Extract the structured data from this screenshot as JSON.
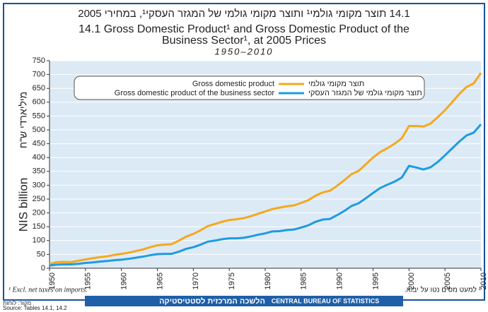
{
  "chart_data": {
    "type": "line",
    "title_he": "14.1 תוצר מקומי גולמי¹ ותוצר מקומי גולמי של המגזר העסקי¹, במחירי 2005",
    "title": [
      "14.1 Gross Domestic Product¹ and Gross Domestic Product of the",
      "Business Sector¹, at 2005 Prices"
    ],
    "subtitle": "1950–2010",
    "y_label": "NIS billion",
    "y_label_he": "מיליארדי ש\"ח",
    "footnote": "¹ Excl. net taxes on imports.",
    "footnote_he": "¹ למעט מסים נטו על יבוא.",
    "footer": "CENTRAL BUREAU OF STATISTICS",
    "footer_he": "הלשכה המרכזית לסטטיסטיקה",
    "source": "Source: Tables 14.1, 14.2",
    "source_he": "מקור: לוחות",
    "x": [
      1950,
      1951,
      1952,
      1953,
      1954,
      1955,
      1956,
      1957,
      1958,
      1959,
      1960,
      1961,
      1962,
      1963,
      1964,
      1965,
      1966,
      1967,
      1968,
      1969,
      1970,
      1971,
      1972,
      1973,
      1974,
      1975,
      1976,
      1977,
      1978,
      1979,
      1980,
      1981,
      1982,
      1983,
      1984,
      1985,
      1986,
      1987,
      1988,
      1989,
      1990,
      1991,
      1992,
      1993,
      1994,
      1995,
      1996,
      1997,
      1998,
      1999,
      2000,
      2001,
      2002,
      2003,
      2004,
      2005,
      2006,
      2007,
      2008,
      2009,
      2010
    ],
    "series": [
      {
        "name": "Gross domestic product",
        "name_he": "תוצר מקומי גולמי",
        "color": "#f5a81c",
        "values": [
          15,
          22,
          23,
          22,
          27,
          32,
          36,
          40,
          43,
          48,
          52,
          56,
          62,
          68,
          76,
          83,
          85,
          87,
          100,
          114,
          124,
          137,
          152,
          160,
          168,
          174,
          177,
          181,
          188,
          197,
          205,
          214,
          219,
          224,
          227,
          236,
          246,
          262,
          274,
          280,
          298,
          318,
          340,
          352,
          376,
          400,
          420,
          434,
          450,
          470,
          514,
          514,
          512,
          523,
          546,
          571,
          600,
          630,
          655,
          668,
          706
        ]
      },
      {
        "name": "Gross domestic product of the business sector",
        "name_he": "תוצר מקומי גולמי של המגזר העסקי",
        "color": "#1e9be0",
        "values": [
          10,
          13,
          14,
          14,
          16,
          19,
          21,
          24,
          26,
          29,
          31,
          34,
          38,
          42,
          47,
          51,
          52,
          52,
          60,
          70,
          76,
          85,
          96,
          100,
          105,
          108,
          108,
          110,
          115,
          121,
          126,
          133,
          134,
          138,
          140,
          147,
          155,
          168,
          176,
          178,
          192,
          207,
          225,
          235,
          253,
          272,
          290,
          302,
          313,
          328,
          370,
          364,
          357,
          365,
          384,
          408,
          433,
          458,
          480,
          490,
          520
        ]
      }
    ],
    "xlim": [
      1950,
      2010
    ],
    "xticks": [
      1950,
      1955,
      1960,
      1965,
      1970,
      1975,
      1980,
      1985,
      1990,
      1995,
      2000,
      2005,
      2010
    ],
    "ylim": [
      0,
      750
    ],
    "yticks": [
      0,
      50,
      100,
      150,
      200,
      250,
      300,
      350,
      400,
      450,
      500,
      550,
      600,
      650,
      700,
      750
    ],
    "grid": true
  }
}
